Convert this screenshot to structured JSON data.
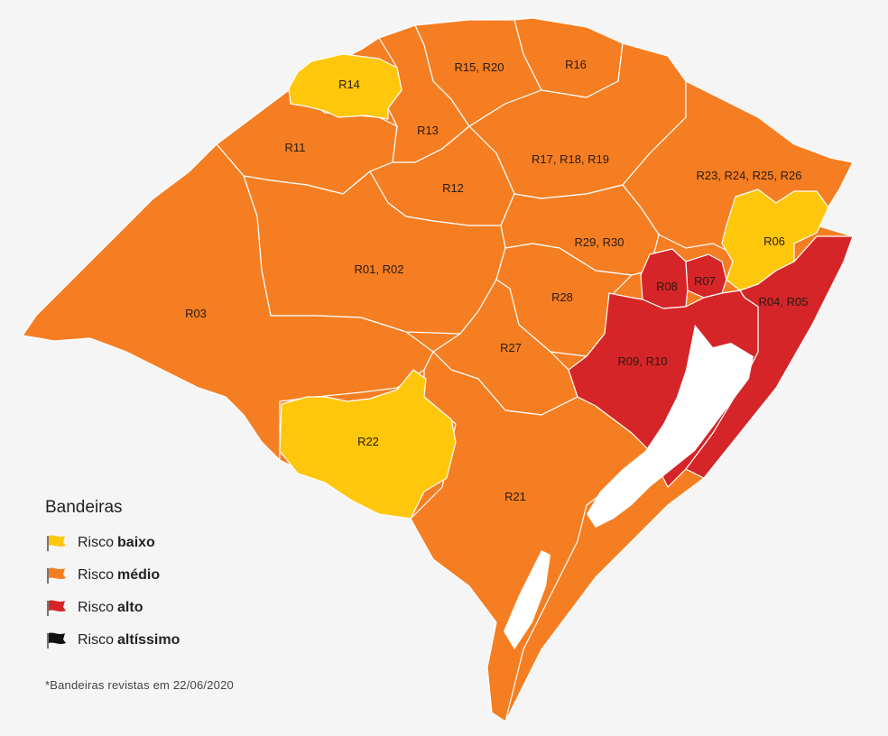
{
  "legend": {
    "title": "Bandeiras",
    "items": [
      {
        "prefix": "Risco",
        "level": "baixo",
        "color": "#ffc70b"
      },
      {
        "prefix": "Risco",
        "level": "médio",
        "color": "#f57e22"
      },
      {
        "prefix": "Risco",
        "level": "alto",
        "color": "#d52528"
      },
      {
        "prefix": "Risco",
        "level": "altíssimo",
        "color": "#111111"
      }
    ]
  },
  "footnote": "*Bandeiras revistas em 22/06/2020",
  "regions": [
    {
      "id": "R14",
      "label": "R14",
      "risk": "baixo"
    },
    {
      "id": "R15_R20",
      "label": "R15, R20",
      "risk": "médio"
    },
    {
      "id": "R16",
      "label": "R16",
      "risk": "médio"
    },
    {
      "id": "R11",
      "label": "R11",
      "risk": "médio"
    },
    {
      "id": "R13",
      "label": "R13",
      "risk": "médio"
    },
    {
      "id": "R17_R18_R19",
      "label": "R17, R18, R19",
      "risk": "médio"
    },
    {
      "id": "R23_R24_R25_R26",
      "label": "R23, R24, R25, R26",
      "risk": "médio"
    },
    {
      "id": "R12",
      "label": "R12",
      "risk": "médio"
    },
    {
      "id": "R06",
      "label": "R06",
      "risk": "baixo"
    },
    {
      "id": "R29_R30",
      "label": "R29, R30",
      "risk": "médio"
    },
    {
      "id": "R01_R02",
      "label": "R01, R02",
      "risk": "médio"
    },
    {
      "id": "R03",
      "label": "R03",
      "risk": "médio"
    },
    {
      "id": "R07",
      "label": "R07",
      "risk": "alto"
    },
    {
      "id": "R08",
      "label": "R08",
      "risk": "alto"
    },
    {
      "id": "R28",
      "label": "R28",
      "risk": "médio"
    },
    {
      "id": "R04_R05",
      "label": "R04, R05",
      "risk": "alto"
    },
    {
      "id": "R09_R10",
      "label": "R09, R10",
      "risk": "alto"
    },
    {
      "id": "R27",
      "label": "R27",
      "risk": "médio"
    },
    {
      "id": "R22",
      "label": "R22",
      "risk": "baixo"
    },
    {
      "id": "R21",
      "label": "R21",
      "risk": "médio"
    }
  ]
}
